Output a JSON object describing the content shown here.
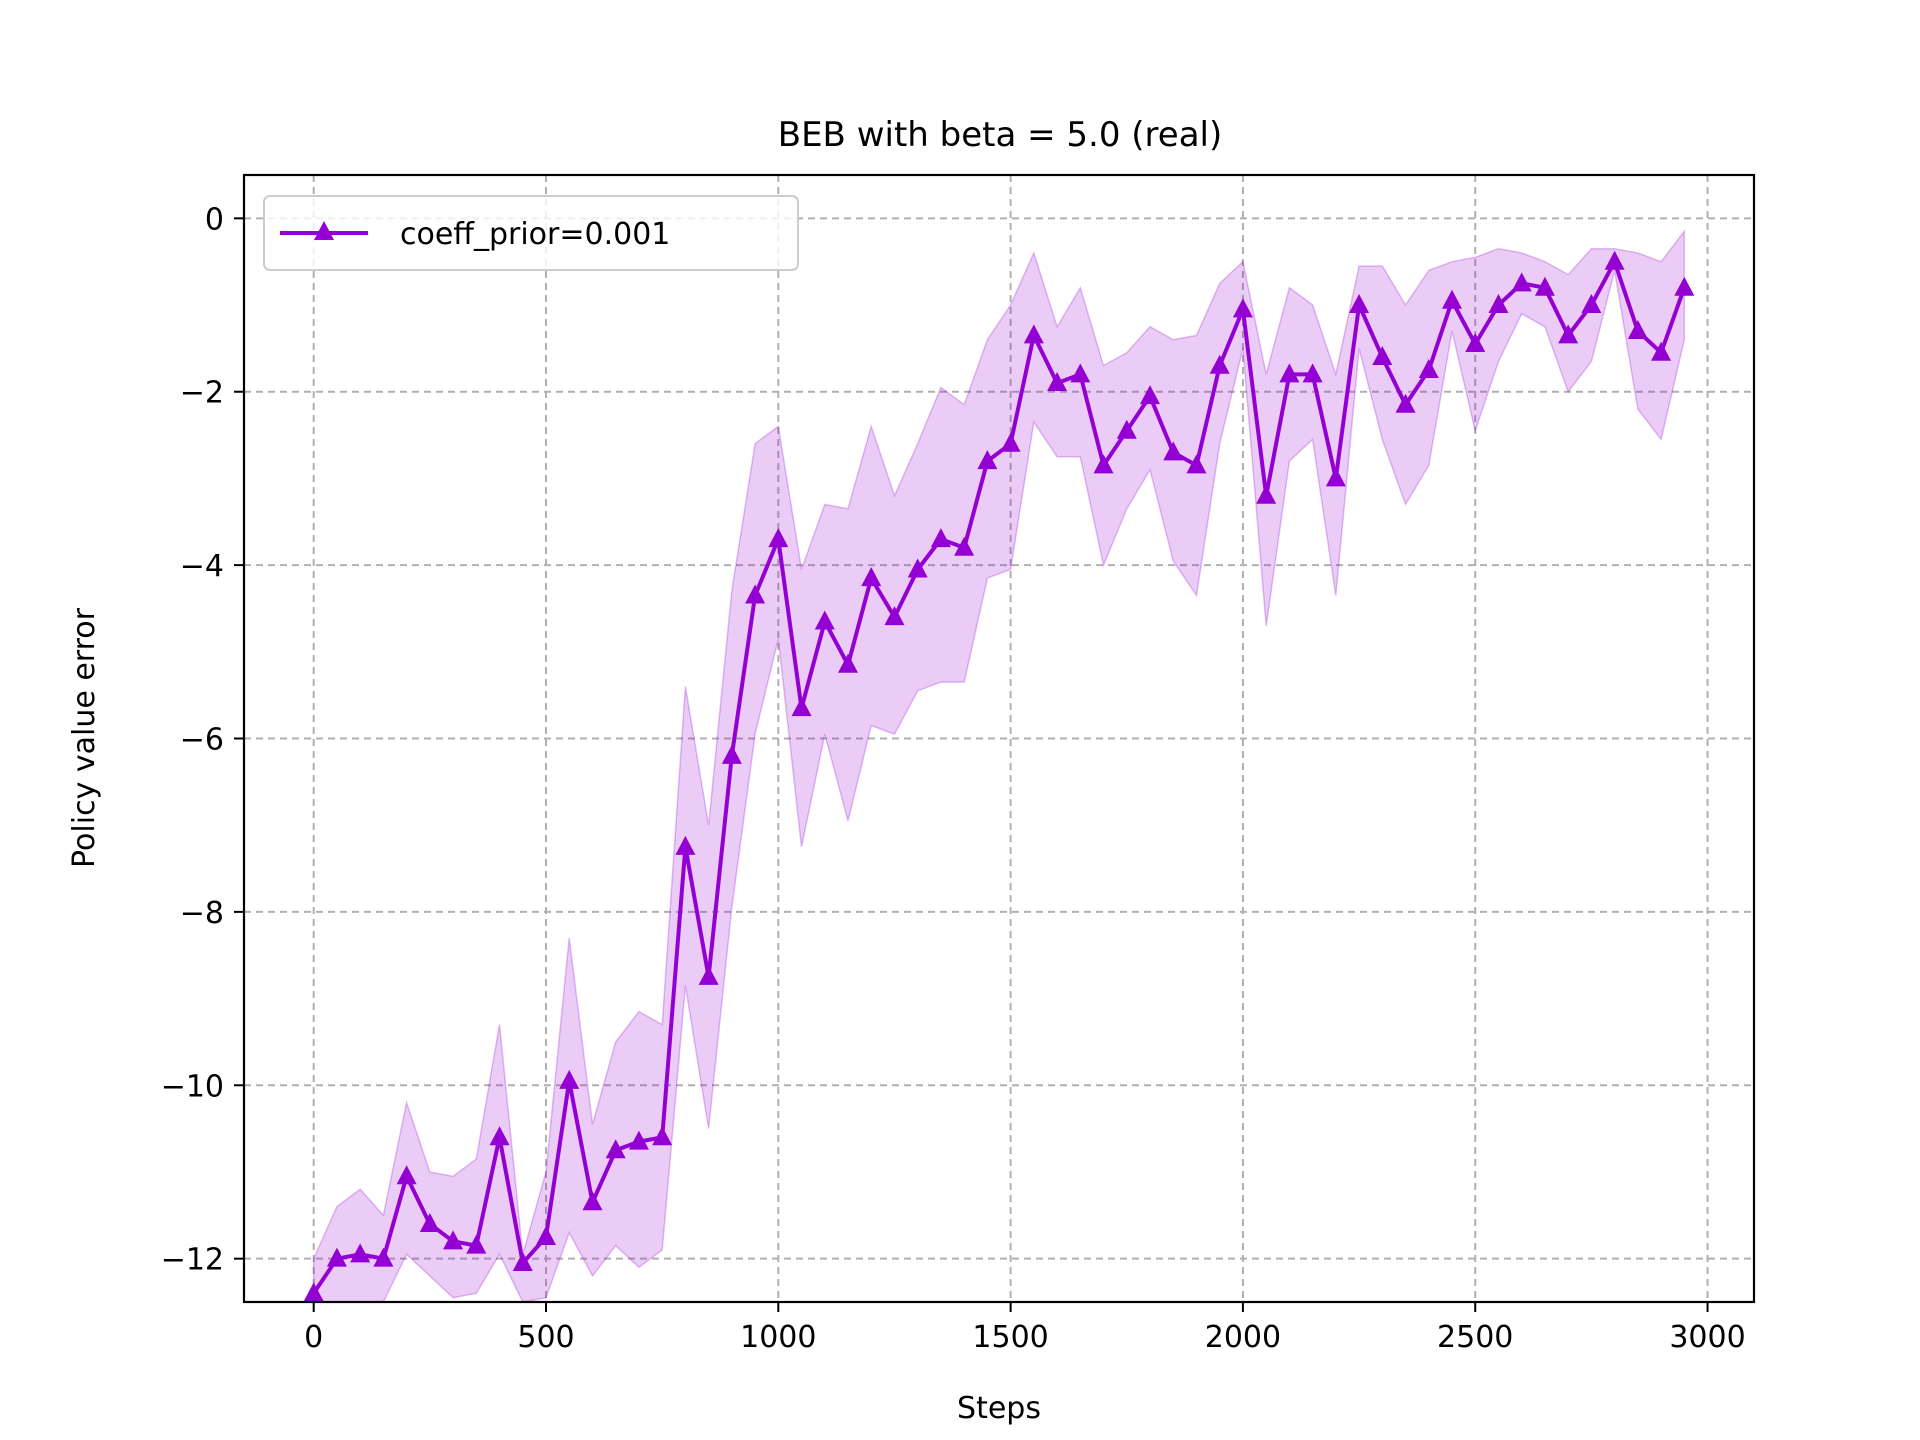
{
  "chart_data": {
    "type": "line",
    "title": "BEB with beta = 5.0 (real)",
    "xlabel": "Steps",
    "ylabel": "Policy value error",
    "xlim": [
      -150,
      3100
    ],
    "ylim": [
      -12.5,
      0.5
    ],
    "x_ticks": [
      0,
      500,
      1000,
      1500,
      2000,
      2500,
      3000
    ],
    "x_tick_labels": [
      "0",
      "500",
      "1000",
      "1500",
      "2000",
      "2500",
      "3000"
    ],
    "y_ticks": [
      0,
      -2,
      -4,
      -6,
      -8,
      -10,
      -12
    ],
    "y_tick_labels": [
      "0",
      "−2",
      "−4",
      "−6",
      "−8",
      "−10",
      "−12"
    ],
    "grid": true,
    "legend_position": "top-left",
    "colors": {
      "line": "#9400d3",
      "band": "#9400d3"
    },
    "marker": "triangle-up",
    "series": [
      {
        "name": "coeff_prior=0.001",
        "x": [
          0,
          50,
          100,
          150,
          200,
          250,
          300,
          350,
          400,
          450,
          500,
          550,
          600,
          650,
          700,
          750,
          800,
          850,
          900,
          950,
          1000,
          1050,
          1100,
          1150,
          1200,
          1250,
          1300,
          1350,
          1400,
          1450,
          1500,
          1550,
          1600,
          1650,
          1700,
          1750,
          1800,
          1850,
          1900,
          1950,
          2000,
          2050,
          2100,
          2150,
          2200,
          2250,
          2300,
          2350,
          2400,
          2450,
          2500,
          2550,
          2600,
          2650,
          2700,
          2750,
          2800,
          2850,
          2900,
          2950
        ],
        "y": [
          -12.4,
          -12.0,
          -11.95,
          -12.0,
          -11.05,
          -11.6,
          -11.8,
          -11.85,
          -10.6,
          -12.05,
          -11.75,
          -9.95,
          -11.35,
          -10.75,
          -10.65,
          -10.6,
          -7.25,
          -8.75,
          -6.2,
          -4.35,
          -3.7,
          -5.65,
          -4.65,
          -5.15,
          -4.15,
          -4.6,
          -4.05,
          -3.7,
          -3.8,
          -2.8,
          -2.6,
          -1.35,
          -1.9,
          -1.8,
          -2.85,
          -2.45,
          -2.05,
          -2.7,
          -2.85,
          -1.7,
          -1.05,
          -3.2,
          -1.8,
          -1.8,
          -3.0,
          -1.0,
          -1.6,
          -2.15,
          -1.75,
          -0.95,
          -1.45,
          -1.0,
          -0.75,
          -0.8,
          -1.35,
          -1.0,
          -0.5,
          -1.3,
          -1.55,
          -0.8
        ],
        "upper": [
          -12.0,
          -11.4,
          -11.2,
          -11.5,
          -10.2,
          -11.0,
          -11.05,
          -10.85,
          -9.3,
          -11.95,
          -11.0,
          -8.3,
          -10.45,
          -9.5,
          -9.15,
          -9.3,
          -5.4,
          -7.0,
          -4.3,
          -2.6,
          -2.4,
          -4.05,
          -3.3,
          -3.35,
          -2.4,
          -3.2,
          -2.6,
          -1.95,
          -2.15,
          -1.4,
          -1.0,
          -0.4,
          -1.25,
          -0.8,
          -1.7,
          -1.55,
          -1.25,
          -1.4,
          -1.35,
          -0.75,
          -0.5,
          -1.8,
          -0.8,
          -1.0,
          -1.8,
          -0.55,
          -0.55,
          -1.0,
          -0.6,
          -0.5,
          -0.45,
          -0.35,
          -0.4,
          -0.5,
          -0.65,
          -0.35,
          -0.35,
          -0.4,
          -0.5,
          -0.15
        ],
        "lower": [
          -12.8,
          -12.7,
          -12.6,
          -12.5,
          -11.95,
          -12.2,
          -12.45,
          -12.4,
          -11.95,
          -12.5,
          -12.45,
          -11.7,
          -12.2,
          -11.85,
          -12.1,
          -11.9,
          -8.85,
          -10.5,
          -7.95,
          -5.95,
          -4.85,
          -7.25,
          -5.95,
          -6.95,
          -5.85,
          -5.95,
          -5.45,
          -5.35,
          -5.35,
          -4.15,
          -4.05,
          -2.35,
          -2.75,
          -2.75,
          -4.0,
          -3.35,
          -2.9,
          -3.95,
          -4.35,
          -2.6,
          -1.5,
          -4.7,
          -2.8,
          -2.55,
          -4.35,
          -1.5,
          -2.55,
          -3.3,
          -2.85,
          -1.3,
          -2.45,
          -1.65,
          -1.1,
          -1.25,
          -2.0,
          -1.65,
          -0.6,
          -2.2,
          -2.55,
          -1.4
        ]
      }
    ]
  }
}
